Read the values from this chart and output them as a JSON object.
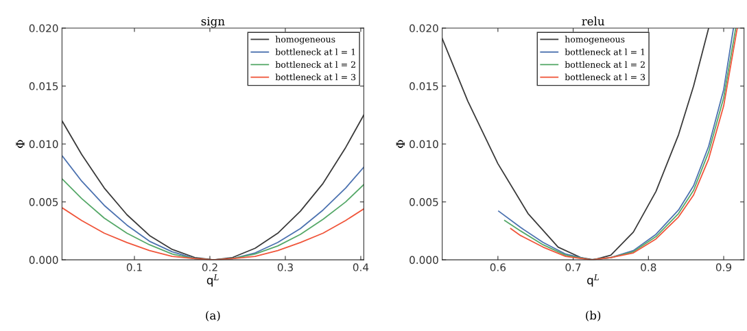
{
  "chart_data": [
    {
      "type": "line",
      "title": "sign",
      "xlabel": "q$^{L}$",
      "ylabel": "Φ",
      "annotations": [
        "(a)"
      ],
      "legend": "top right",
      "grid": false,
      "marker": "none",
      "line_style": "solid",
      "xlim": [
        0.004,
        0.404
      ],
      "xticks": [
        0.1,
        0.2,
        0.3,
        0.4
      ],
      "ylim": [
        0,
        0.02
      ],
      "yticks": [
        {
          "value": 0,
          "label": "0.000"
        },
        {
          "value": 0.005,
          "label": "0.005"
        },
        {
          "value": 0.01,
          "label": "0.010"
        },
        {
          "value": 0.015,
          "label": "0.015"
        },
        {
          "value": 0.02,
          "label": "0.020"
        }
      ],
      "x": [
        0.004,
        0.03,
        0.06,
        0.09,
        0.12,
        0.15,
        0.18,
        0.205,
        0.23,
        0.26,
        0.29,
        0.32,
        0.35,
        0.38,
        0.404
      ],
      "series": [
        {
          "name": "homogeneous",
          "color": "#3a3a3a",
          "values": [
            0.012,
            0.0091,
            0.0062,
            0.0039,
            0.0021,
            0.0009,
            0.0002,
            0,
            0.0002,
            0.001,
            0.0023,
            0.0042,
            0.0066,
            0.0097,
            0.0125
          ]
        },
        {
          "name": "bottleneck at l = 1",
          "color": "#4c72b0",
          "values": [
            0.009,
            0.0068,
            0.0047,
            0.003,
            0.0016,
            0.0007,
            0.0001,
            0,
            0.0001,
            0.0006,
            0.0015,
            0.0027,
            0.0043,
            0.0062,
            0.008
          ]
        },
        {
          "name": "bottleneck at l = 2",
          "color": "#55a868",
          "values": [
            0.007,
            0.0053,
            0.0036,
            0.0023,
            0.0013,
            0.0005,
            0.0001,
            0,
            0.0001,
            0.0005,
            0.0012,
            0.0022,
            0.0035,
            0.005,
            0.0065
          ]
        },
        {
          "name": "bottleneck at l = 3",
          "color": "#f0553a",
          "values": [
            0.0045,
            0.0034,
            0.0023,
            0.0015,
            0.0008,
            0.0003,
            0.0001,
            0,
            0.0001,
            0.0003,
            0.0008,
            0.0015,
            0.0023,
            0.0034,
            0.0044
          ]
        }
      ]
    },
    {
      "type": "line",
      "title": "relu",
      "xlabel": "q$^{L}$",
      "ylabel": "Φ",
      "annotations": [
        "(b)"
      ],
      "legend": "top",
      "grid": false,
      "marker": "none",
      "line_style": "solid",
      "xlim": [
        0.526,
        0.927
      ],
      "xticks": [
        0.6,
        0.7,
        0.8,
        0.9
      ],
      "ylim": [
        0,
        0.02
      ],
      "yticks": [
        {
          "value": 0,
          "label": "0.000"
        },
        {
          "value": 0.005,
          "label": "0.005"
        },
        {
          "value": 0.01,
          "label": "0.010"
        },
        {
          "value": 0.015,
          "label": "0.015"
        },
        {
          "value": 0.02,
          "label": "0.020"
        }
      ],
      "series": [
        {
          "name": "homogeneous",
          "color": "#3a3a3a",
          "x": [
            0.526,
            0.56,
            0.6,
            0.64,
            0.68,
            0.71,
            0.727,
            0.75,
            0.78,
            0.81,
            0.84,
            0.86,
            0.88
          ],
          "values": [
            0.0191,
            0.0137,
            0.0083,
            0.004,
            0.0011,
            0.0002,
            0,
            0.0004,
            0.0024,
            0.0059,
            0.0108,
            0.015,
            0.02
          ]
        },
        {
          "name": "bottleneck at l = 1",
          "color": "#4c72b0",
          "x": [
            0.601,
            0.63,
            0.66,
            0.69,
            0.722,
            0.75,
            0.78,
            0.81,
            0.84,
            0.86,
            0.88,
            0.9,
            0.913
          ],
          "values": [
            0.0042,
            0.0028,
            0.0015,
            0.0005,
            0,
            0.0002,
            0.0008,
            0.0022,
            0.0043,
            0.0064,
            0.0098,
            0.0147,
            0.02
          ]
        },
        {
          "name": "bottleneck at l = 2",
          "color": "#55a868",
          "x": [
            0.609,
            0.63,
            0.66,
            0.69,
            0.723,
            0.75,
            0.78,
            0.81,
            0.84,
            0.86,
            0.88,
            0.9,
            0.916
          ],
          "values": [
            0.0034,
            0.0025,
            0.0013,
            0.0004,
            0,
            0.0002,
            0.0007,
            0.002,
            0.004,
            0.006,
            0.0093,
            0.014,
            0.02
          ]
        },
        {
          "name": "bottleneck at l = 3",
          "color": "#f0553a",
          "x": [
            0.617,
            0.63,
            0.66,
            0.69,
            0.724,
            0.75,
            0.78,
            0.81,
            0.84,
            0.86,
            0.88,
            0.9,
            0.918
          ],
          "values": [
            0.0027,
            0.0021,
            0.0011,
            0.0003,
            0,
            0.0002,
            0.0006,
            0.0018,
            0.0037,
            0.0056,
            0.0087,
            0.0133,
            0.02
          ]
        }
      ]
    }
  ]
}
